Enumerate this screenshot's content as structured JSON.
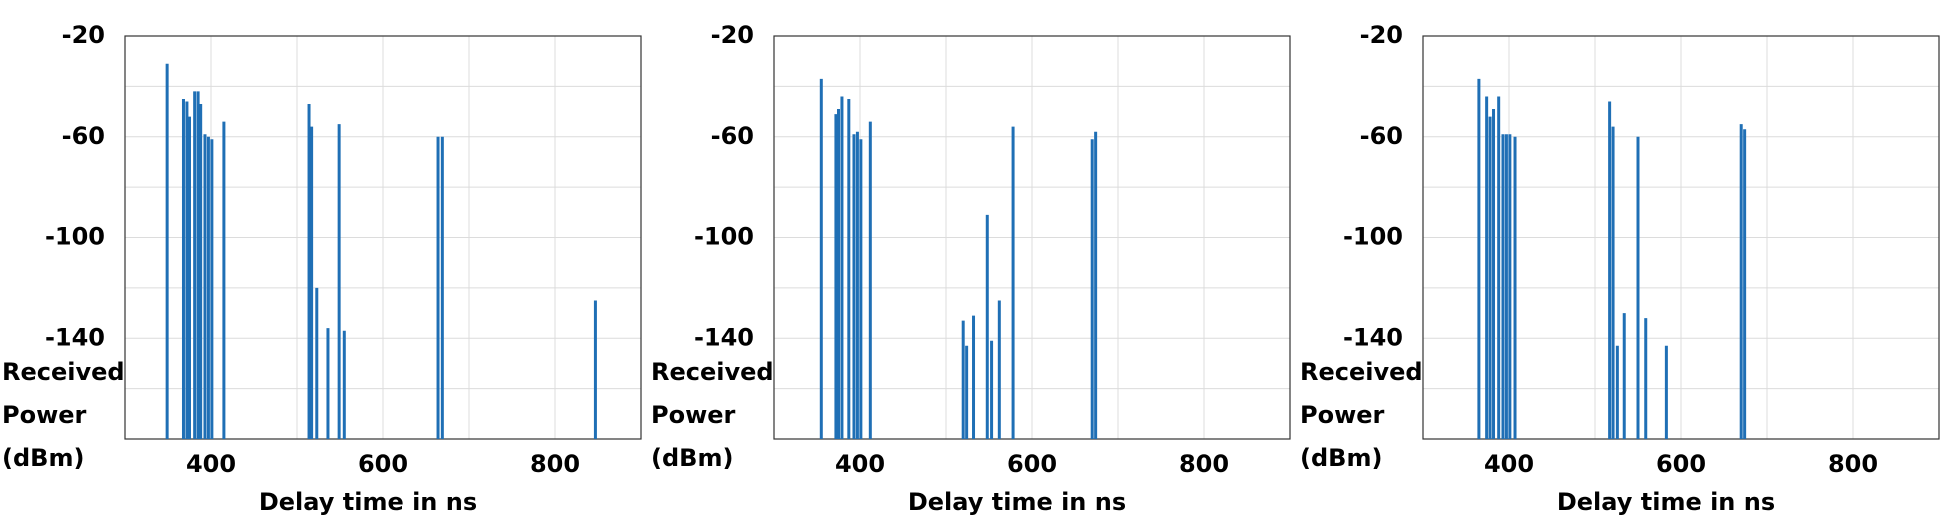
{
  "chart_data": [
    {
      "type": "stem",
      "xlabel": "Delay time in ns",
      "ylabel": [
        "Received",
        "Power",
        "(dBm)"
      ],
      "color": "#1f6fb5",
      "grid": true,
      "xlim": [
        300,
        900
      ],
      "xticks": [
        400,
        600,
        800
      ],
      "ylim": [
        -180,
        -20
      ],
      "yticks": [
        -20,
        -60,
        -100,
        -140
      ],
      "x": [
        349,
        368,
        372,
        375,
        381,
        385,
        388,
        393,
        397,
        401,
        415,
        514,
        517,
        523,
        536,
        549,
        555,
        664,
        669,
        847
      ],
      "values": [
        -31,
        -45,
        -46,
        -52,
        -42,
        -42,
        -47,
        -59,
        -60,
        -61,
        -54,
        -47,
        -56,
        -120,
        -136,
        -55,
        -137,
        -60,
        -60,
        -125
      ]
    },
    {
      "type": "stem",
      "xlabel": "Delay time in ns",
      "ylabel": [
        "Received",
        "Power",
        "(dBm)"
      ],
      "color": "#1f6fb5",
      "grid": true,
      "xlim": [
        300,
        900
      ],
      "xticks": [
        400,
        600,
        800
      ],
      "ylim": [
        -180,
        -20
      ],
      "yticks": [
        -20,
        -60,
        -100,
        -140
      ],
      "x": [
        355,
        372,
        375,
        379,
        387,
        393,
        397,
        401,
        412,
        520,
        524,
        532,
        548,
        553,
        562,
        578,
        670,
        674
      ],
      "values": [
        -37,
        -51,
        -49,
        -44,
        -45,
        -59,
        -58,
        -61,
        -54,
        -133,
        -143,
        -131,
        -91,
        -141,
        -125,
        -56,
        -61,
        -58
      ]
    },
    {
      "type": "stem",
      "xlabel": "Delay time in ns",
      "ylabel": [
        "Received",
        "Power",
        "(dBm)"
      ],
      "color": "#1f6fb5",
      "grid": true,
      "xlim": [
        300,
        900
      ],
      "xticks": [
        400,
        600,
        800
      ],
      "ylim": [
        -180,
        -20
      ],
      "yticks": [
        -20,
        -60,
        -100,
        -140
      ],
      "x": [
        365,
        374,
        378,
        382,
        388,
        393,
        397,
        401,
        407,
        517,
        521,
        526,
        534,
        550,
        559,
        583,
        670,
        674
      ],
      "values": [
        -37,
        -44,
        -52,
        -49,
        -44,
        -59,
        -59,
        -59,
        -60,
        -46,
        -56,
        -143,
        -130,
        -60,
        -132,
        -143,
        -55,
        -57
      ]
    }
  ]
}
